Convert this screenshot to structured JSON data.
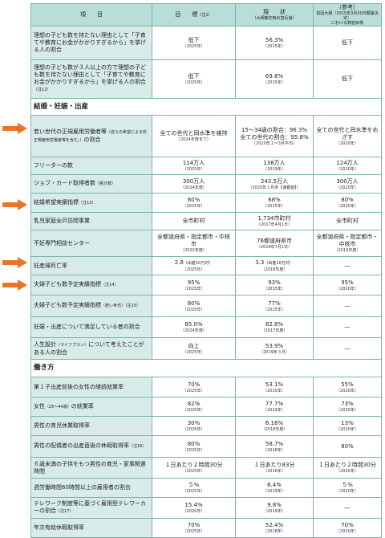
{
  "header": {
    "item": "項　　目",
    "target": "目　　標",
    "target_note": "（注1）",
    "current": "現　　状",
    "current_sub": "（大綱策定時の直近値）",
    "ref": "（参考）",
    "ref_sub1": "前回大綱",
    "ref_sub1_note": "（2015年3月20日閣議決定）",
    "ref_sub2": "における数値目標"
  },
  "rows_top": [
    {
      "label": "理想の子ども数を持たない理由として「子育てや教育にお金がかかりすぎるから」を挙げる人の割合",
      "note": "",
      "target": "低下",
      "target_sub": "（2025年）",
      "current": "56.3%",
      "current_sub": "（2015年）",
      "ref": "低下",
      "ref_sub": ""
    },
    {
      "label": "理想の子ども数が３人以上の方で理想の子ども数を持たない理由として「子育てや教育にお金がかかりすぎるから」を挙げる人の割合",
      "note": "（注12）",
      "target": "低下",
      "target_sub": "（2025年）",
      "current": "69.8%",
      "current_sub": "（2015年）",
      "ref": "低下",
      "ref_sub": ""
    }
  ],
  "section_marriage": "結婚・妊娠・出産",
  "rows_marriage": [
    {
      "label": "若い世代の正規雇用労働者等",
      "label_small": "（自らの希望による非正規雇用労働者等を含む。）",
      "label_tail": "の割合",
      "target": "全ての世代と同水準を維持",
      "target_sub": "（2024年度まで）",
      "current": "15～34歳の割合：96.3%",
      "current2": "全ての世代の割合：95.8%",
      "current_sub": "（2020年１～3月平均）",
      "ref": "全ての世代と同水準をめざす",
      "ref_sub": "（2020年）"
    },
    {
      "label": "フリーターの数",
      "target": "114万人",
      "target_sub": "（2025年）",
      "current": "138万人",
      "current_sub": "（2019年）",
      "ref": "124万人",
      "ref_sub": "（2020年）"
    },
    {
      "label": "ジョブ・カード取得者数",
      "note": "（累計数）",
      "target": "300万人",
      "target_sub": "（2024年度）",
      "current": "243.5万人",
      "current_sub": "（2020年１月末【速報値】）",
      "ref": "300万人",
      "ref_sub": "（2020年）"
    },
    {
      "label": "結婚希望実績指標",
      "note": "（注13）",
      "target": "80%",
      "target_sub": "（2025年）",
      "current": "68%",
      "current_sub": "（2015年）",
      "ref": "80%",
      "ref_sub": "（2020年）"
    },
    {
      "label": "乳児家庭全戸訪問事業",
      "target": "全市町村",
      "target_sub": "",
      "current": "1,734市町村",
      "current_sub": "（2017年4月1日）",
      "ref": "全市町村",
      "ref_sub": ""
    },
    {
      "label": "不妊専門相談センター",
      "target": "全都道府県・指定都市・中核市",
      "target_sub": "（2022年度）",
      "current": "76都道府県市",
      "current_sub": "（2019年7月1日）",
      "ref": "全都道府県・指定都市・中核市",
      "ref_sub": "（2019年度）"
    },
    {
      "label": "妊産婦死亡率",
      "target": "2.8",
      "target_small": "（出産10万対）",
      "target_sub": "（2025年）",
      "current": "3.3",
      "current_small": "（出産10万対）",
      "current_sub": "（2018年度）",
      "ref": "―",
      "ref_sub": ""
    },
    {
      "label": "夫婦子ども数予定実績指標",
      "note": "（注14）",
      "target": "95%",
      "target_sub": "（2025年）",
      "current": "93%",
      "current_sub": "（2015年）",
      "ref": "95%",
      "ref_sub": "（2020年）"
    },
    {
      "label": "夫婦子ども数予定実績指標",
      "note": "（若い世代）（注15）",
      "target": "80%",
      "target_sub": "（2025年）",
      "current": "77%",
      "current_sub": "（2015年）",
      "ref": "―",
      "ref_sub": ""
    },
    {
      "label": "妊娠・出産について満足している者の割合",
      "target": "85.0%",
      "target_sub": "（2024年度）",
      "current": "82.8%",
      "current_sub": "（2017年度）",
      "ref": "―",
      "ref_sub": ""
    },
    {
      "label": "人生設計",
      "note": "（ライフプラン）",
      "label_tail": "について考えたことがある人の割合",
      "target": "向上",
      "target_sub": "（2025年）",
      "current": "53.9%",
      "current_sub": "（2019年３月）",
      "ref": "―",
      "ref_sub": ""
    }
  ],
  "section_work": "働き方",
  "rows_work": [
    {
      "label": "第１子出産前後の女性の継続就業率",
      "target": "70%",
      "target_sub": "（2025年）",
      "current": "53.1%",
      "current_sub": "（2015年）",
      "ref": "55%",
      "ref_sub": "（2020年）"
    },
    {
      "label": "女性",
      "note": "（25～44歳）",
      "label_tail": "の就業率",
      "target": "82%",
      "target_sub": "（2025年）",
      "current": "77.7%",
      "current_sub": "（2019年）",
      "ref": "73%",
      "ref_sub": "（2020年）"
    },
    {
      "label": "男性の育児休業取得率",
      "target": "30%",
      "target_sub": "（2025年）",
      "current": "6.16%",
      "current_sub": "（2018年度）",
      "ref": "13%",
      "ref_sub": "（2020年）"
    },
    {
      "label": "男性の配偶者の出産直後の休暇取得率",
      "note": "（注16）",
      "target": "80%",
      "target_sub": "（2025年）",
      "current": "58.7%",
      "current_sub": "（2018年）",
      "ref": "80%",
      "ref_sub": ""
    },
    {
      "label": "６歳未満の子供をもつ男性の育児・家事関連時間",
      "target": "１日あたり２時間30分",
      "target_sub": "（2025年）",
      "current": "１日あたり83分",
      "current_sub": "（2016年）",
      "ref": "１日あたり２時間30分",
      "ref_sub": "（2020年）"
    },
    {
      "label": "週労働時間60時間以上の雇用者の割合",
      "target": "５%",
      "target_sub": "（2025年）",
      "current": "6.4%",
      "current_sub": "（2019年）",
      "ref": "５%",
      "ref_sub": "（2020年）"
    },
    {
      "label": "テレワーク制度等に基づく雇用型テレワーカーの割合",
      "note": "（注17）",
      "target": "15.4%",
      "target_sub": "（2020年）",
      "current": "9.8%",
      "current_sub": "（2019年）",
      "ref": "―",
      "ref_sub": ""
    },
    {
      "label": "年次有給休暇取得率",
      "target": "70%",
      "target_sub": "（2025年）",
      "current": "52.4%",
      "current_sub": "（2018年）",
      "ref": "70%",
      "ref_sub": "（2020年）"
    }
  ]
}
